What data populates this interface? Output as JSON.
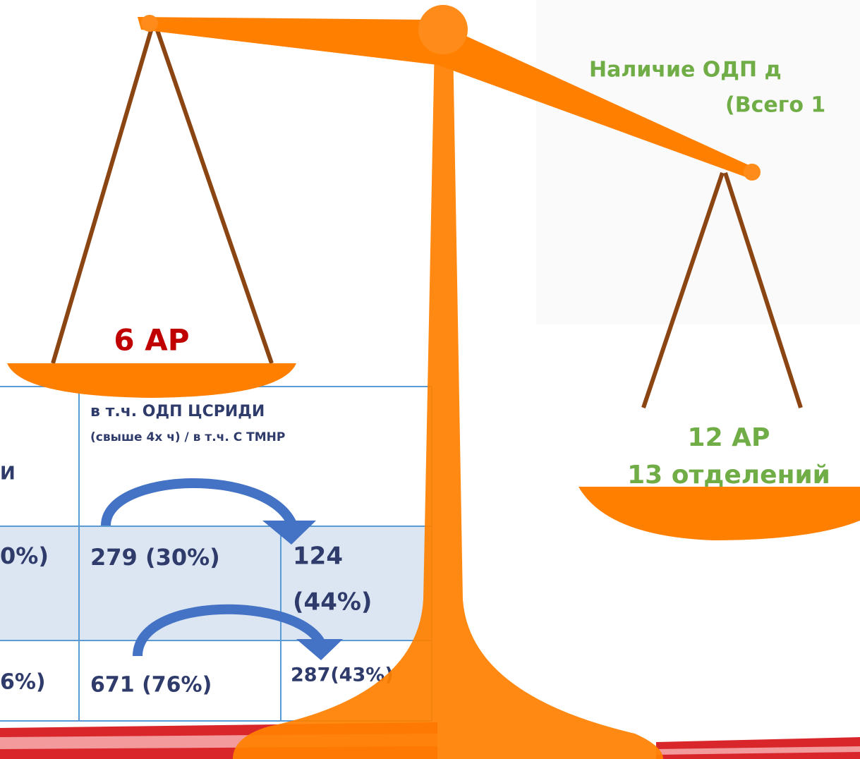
{
  "title_lines": [
    "Наличие ОДП д",
    "(Всего 1"
  ],
  "left_pan": "6 АР",
  "right_pan": [
    "12 АР",
    "13 отделений"
  ],
  "table": {
    "partial_header": "И",
    "header": [
      "в т.ч. ОДП  ЦСРИДИ",
      "(свыше 4х ч) / в т.ч. С ТМНР"
    ],
    "rows": [
      [
        "0%)",
        "279 (30%)",
        [
          "124",
          "(44%)"
        ]
      ],
      [
        "6%)",
        "671 (76%)",
        "287(43%)"
      ]
    ]
  }
}
